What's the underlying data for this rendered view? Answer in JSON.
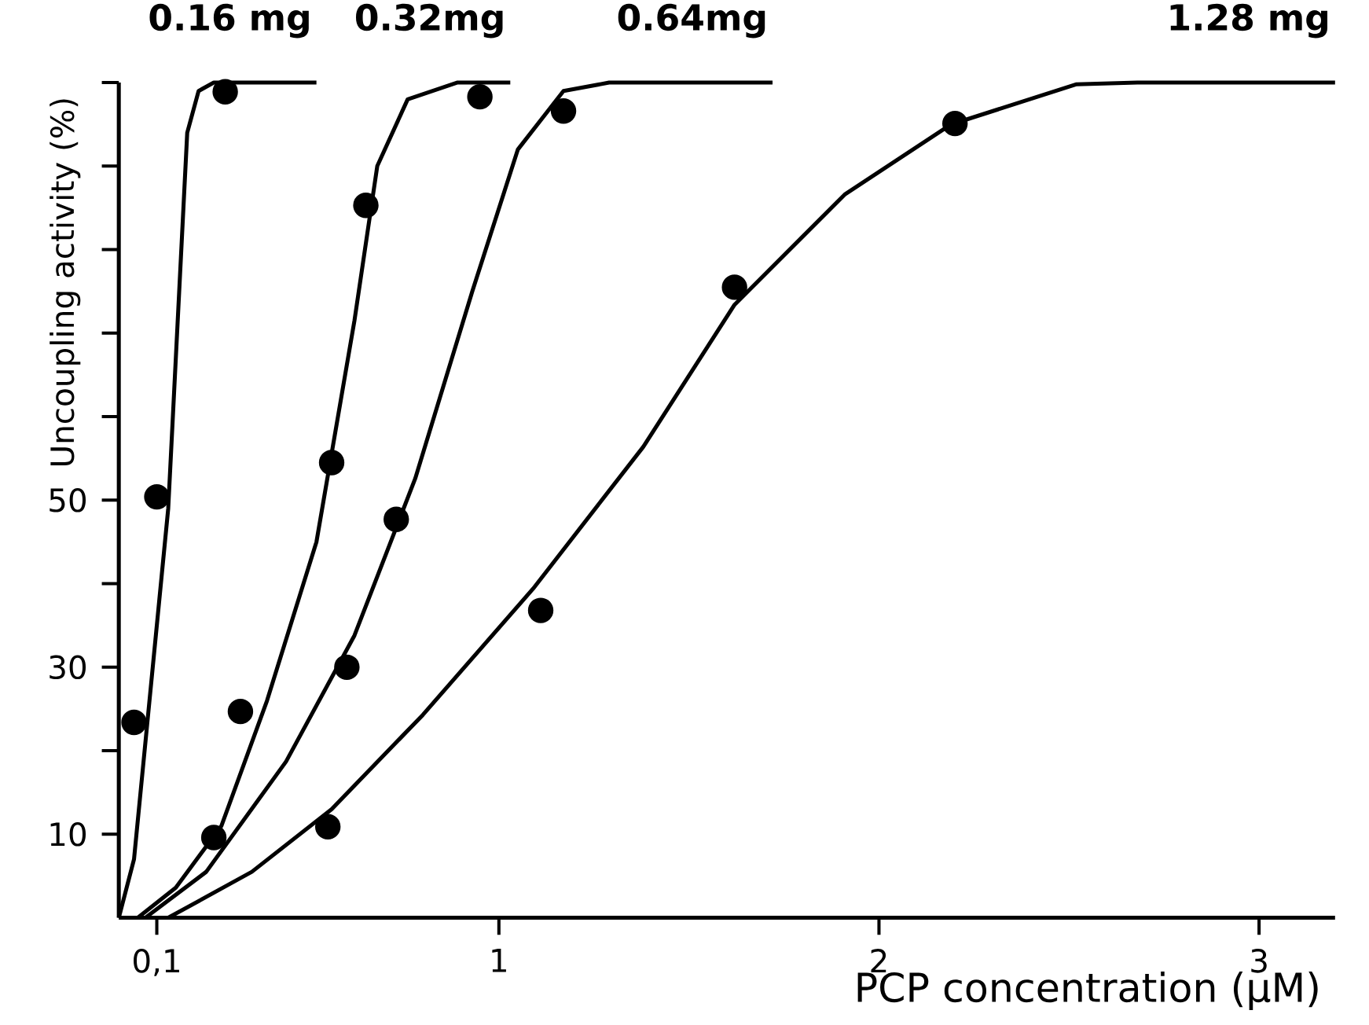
{
  "chart_data": {
    "type": "line",
    "xlabel": "PCP concentration (μM)",
    "ylabel": "Uncoupling activity (%)",
    "xlim": [
      0,
      3.2
    ],
    "ylim": [
      0,
      100
    ],
    "xticks": [
      {
        "value": 0.1,
        "label": "0,1"
      },
      1,
      2,
      3
    ],
    "yticks": [
      10,
      {
        "value": 20,
        "label": null
      },
      30,
      {
        "value": 40,
        "label": null
      },
      50,
      {
        "value": 60,
        "label": null
      },
      {
        "value": 70,
        "label": null
      },
      {
        "value": 80,
        "label": null
      },
      {
        "value": 90,
        "label": null
      },
      {
        "value": 100,
        "label": null
      }
    ],
    "series": [
      {
        "name": "0.16 mg",
        "color": "#000000",
        "x": [
          0,
          0.04,
          0.13,
          0.18,
          0.21,
          0.25,
          0.52
        ],
        "values": [
          0,
          7,
          49,
          94,
          99,
          100,
          100
        ]
      },
      {
        "name": "0.32mg",
        "color": "#000000",
        "x": [
          0.05,
          0.15,
          0.27,
          0.39,
          0.52,
          0.62,
          0.68,
          0.76,
          0.89,
          1.03
        ],
        "values": [
          0,
          3.6,
          11,
          26,
          45,
          71.5,
          90,
          98,
          100,
          100
        ]
      },
      {
        "name": "0.64mg",
        "color": "#000000",
        "x": [
          0.07,
          0.23,
          0.44,
          0.62,
          0.78,
          0.93,
          1.05,
          1.17,
          1.29,
          1.72
        ],
        "values": [
          0,
          5.5,
          18.7,
          33.8,
          52.6,
          75,
          92,
          99,
          100,
          100
        ]
      },
      {
        "name": "1.28 mg",
        "color": "#000000",
        "x": [
          0.13,
          0.35,
          0.56,
          0.8,
          1.09,
          1.38,
          1.62,
          1.91,
          2.19,
          2.52,
          2.68,
          3.2
        ],
        "values": [
          0,
          5.5,
          13,
          24.3,
          39.4,
          56.4,
          73.4,
          86.6,
          95,
          99.8,
          100,
          100
        ]
      },
      {
        "type": "scatter",
        "marker": "circle",
        "color": "#000000",
        "x": [
          0.04,
          0.1,
          0.28,
          0.25,
          0.32,
          0.56,
          0.65,
          0.95,
          0.6,
          0.73,
          1.17,
          0.55,
          1.11,
          1.62,
          2.2
        ],
        "values": [
          23.4,
          50.4,
          98.9,
          9.6,
          24.7,
          54.5,
          85.3,
          98.3,
          30,
          47.7,
          96.6,
          10.9,
          36.8,
          75.5,
          95.1
        ]
      }
    ]
  }
}
